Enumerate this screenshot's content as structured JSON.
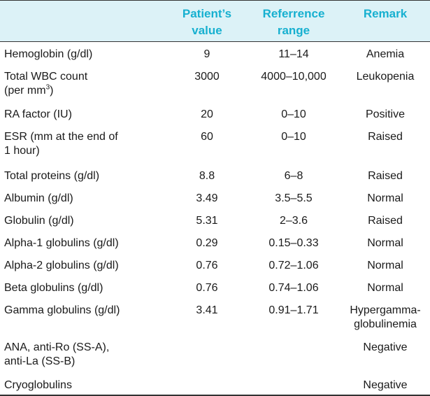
{
  "headers": {
    "patient_value": [
      "Patient’s",
      "value"
    ],
    "reference_range": [
      "Referrence",
      "range"
    ],
    "remark": "Remark"
  },
  "rows": [
    {
      "param": [
        "Hemoglobin (g/dl)"
      ],
      "value": "9",
      "range": "11–14",
      "remark": [
        "Anemia"
      ]
    },
    {
      "param": [
        "Total WBC count",
        "(per mm",
        "3",
        ")"
      ],
      "value": "3000",
      "range": "4000–10,000",
      "remark": [
        "Leukopenia"
      ]
    },
    {
      "param": [
        "RA factor (IU)"
      ],
      "value": "20",
      "range": "0–10",
      "remark": [
        "Positive"
      ]
    },
    {
      "param": [
        "ESR (mm at the end of",
        "1 hour)"
      ],
      "value": "60",
      "range": "0–10",
      "remark": [
        "Raised"
      ]
    },
    {
      "param": [
        "Total proteins (g/dl)"
      ],
      "value": "8.8",
      "range": "6–8",
      "remark": [
        "Raised"
      ]
    },
    {
      "param": [
        "Albumin (g/dl)"
      ],
      "value": "3.49",
      "range": "3.5–5.5",
      "remark": [
        "Normal"
      ]
    },
    {
      "param": [
        "Globulin (g/dl)"
      ],
      "value": "5.31",
      "range": "2–3.6",
      "remark": [
        "Raised"
      ]
    },
    {
      "param": [
        "Alpha-1 globulins (g/dl)"
      ],
      "value": "0.29",
      "range": "0.15–0.33",
      "remark": [
        "Normal"
      ]
    },
    {
      "param": [
        "Alpha-2 globulins (g/dl)"
      ],
      "value": "0.76",
      "range": "0.72–1.06",
      "remark": [
        "Normal"
      ]
    },
    {
      "param": [
        "Beta globulins (g/dl)"
      ],
      "value": "0.76",
      "range": "0.74–1.06",
      "remark": [
        "Normal"
      ]
    },
    {
      "param": [
        "Gamma globulins (g/dl)"
      ],
      "value": "3.41",
      "range": "0.91–1.71",
      "remark": [
        "Hypergamma-",
        "globulinemia"
      ]
    },
    {
      "param": [
        "ANA, anti-Ro (SS-A),",
        "anti-La (SS-B)"
      ],
      "value": "",
      "range": "",
      "remark": [
        "Negative"
      ]
    },
    {
      "param": [
        "Cryoglobulins"
      ],
      "value": "",
      "range": "",
      "remark": [
        "Negative"
      ]
    }
  ],
  "colors": {
    "header_bg": "#dcf2f7",
    "header_text": "#17b0d0",
    "rule": "#333333"
  }
}
